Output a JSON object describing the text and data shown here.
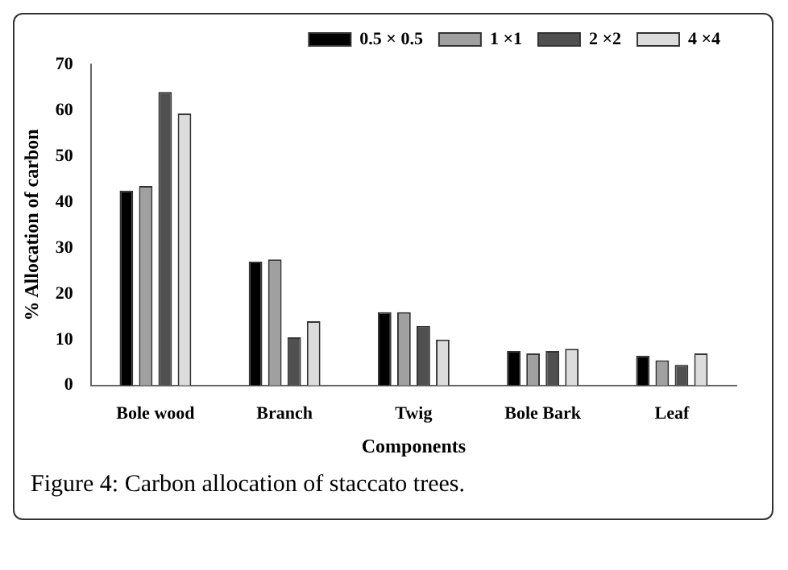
{
  "chart_data": {
    "type": "bar",
    "xlabel": "Components",
    "ylabel": "% Allocation of carbon",
    "categories": [
      "Bole wood",
      "Branch",
      "Twig",
      "Bole Bark",
      "Leaf"
    ],
    "series": [
      {
        "name": "0.5 × 0.5",
        "color": "#000000",
        "values": [
          42.5,
          27,
          16,
          7.5,
          6.5
        ]
      },
      {
        "name": "1 ×1",
        "color": "#a0a0a0",
        "values": [
          43.5,
          27.5,
          16,
          7,
          5.5
        ]
      },
      {
        "name": "2 ×2",
        "color": "#505050",
        "values": [
          64,
          10.5,
          13,
          7.5,
          4.5
        ]
      },
      {
        "name": "4 ×4",
        "color": "#dcdcdc",
        "values": [
          59.3,
          14,
          10,
          8,
          7
        ]
      }
    ],
    "ylim": [
      0,
      70
    ],
    "yticks": [
      0,
      10,
      20,
      30,
      40,
      50,
      60,
      70
    ],
    "grid": false,
    "legend": "top right",
    "annotations": [
      "Figure 4: Carbon allocation of staccato trees."
    ]
  }
}
